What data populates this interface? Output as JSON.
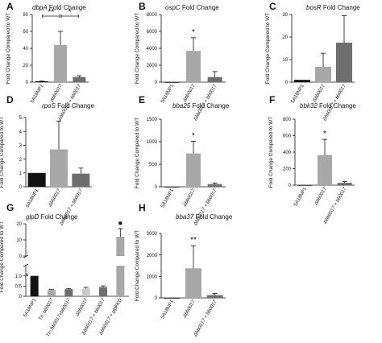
{
  "figure": {
    "y_axis_label": "Fold Change Compared to WT",
    "colors": {
      "black": "#111111",
      "light_gray": "#a8a8a8",
      "dark_gray": "#6e6e6e",
      "lighter_gray": "#c8c8c8",
      "text": "#111111"
    }
  },
  "chart_data": [
    {
      "panel_label": "A",
      "type": "bar",
      "title_gene": "dbpA",
      "title_rest": "Fold Change",
      "ylabel": "Fold Change Compared to WT",
      "ylim": [
        0,
        80
      ],
      "yticks": [
        0,
        20,
        40,
        60,
        80
      ],
      "categories": [
        "5A18NP1",
        "Δbb0017",
        "Δbb0017 + bb0017"
      ],
      "values": [
        1,
        44,
        6
      ],
      "errors": [
        0.3,
        16,
        1.5
      ],
      "bar_colors": [
        "black",
        "light_gray",
        "dark_gray"
      ],
      "brackets": [
        {
          "from": 0,
          "to": 1,
          "label": "**"
        },
        {
          "from": 1,
          "to": 2,
          "label": "*"
        }
      ]
    },
    {
      "panel_label": "B",
      "type": "bar",
      "title_gene": "ospC",
      "title_rest": "Fold Change",
      "ylabel": "Fold Change Compared to WT",
      "ylim": [
        0,
        8000
      ],
      "yticks": [
        0,
        2000,
        4000,
        6000,
        8000
      ],
      "categories": [
        "5A18NP1",
        "Δbb0017",
        "Δbb0017 + bb0017"
      ],
      "values": [
        1,
        3700,
        600
      ],
      "errors": [
        0,
        1550,
        650
      ],
      "bar_colors": [
        "black",
        "light_gray",
        "dark_gray"
      ],
      "stars": [
        null,
        "*",
        null
      ]
    },
    {
      "panel_label": "C",
      "type": "bar",
      "title_gene": "bosR",
      "title_rest": "Fold Change",
      "ylabel": "Fold Change Compared to WT",
      "ylim": [
        0,
        30
      ],
      "yticks": [
        0,
        10,
        20,
        30
      ],
      "categories": [
        "5A18NP1",
        "Δbb0017",
        "Δbb0017 + bb0017"
      ],
      "values": [
        1,
        6.8,
        17.5
      ],
      "errors": [
        0,
        6,
        12
      ],
      "bar_colors": [
        "black",
        "light_gray",
        "dark_gray"
      ]
    },
    {
      "panel_label": "D",
      "type": "bar",
      "title_gene": "rpoS",
      "title_rest": "Fold Change",
      "ylabel": "Fold Change Compared to WT",
      "ylim": [
        0,
        5
      ],
      "yticks": [
        0,
        1,
        2,
        3,
        4,
        5
      ],
      "categories": [
        "5A18NP1",
        "Δbb0017",
        "Δbb0017 + bb0017"
      ],
      "values": [
        1,
        2.7,
        0.95
      ],
      "errors": [
        0,
        2.05,
        0.4
      ],
      "bar_colors": [
        "black",
        "light_gray",
        "dark_gray"
      ]
    },
    {
      "panel_label": "E",
      "type": "bar",
      "title_gene": "bba25",
      "title_rest": "Fold Change",
      "ylabel": "Fold Change Compared to WT",
      "ylim": [
        0,
        1500
      ],
      "yticks": [
        0,
        500,
        1000,
        1500
      ],
      "categories": [
        "5A18NP1",
        "Δbb0017",
        "Δbb0017 + bb0017"
      ],
      "values": [
        1,
        740,
        60
      ],
      "errors": [
        0,
        270,
        25
      ],
      "bar_colors": [
        "black",
        "light_gray",
        "dark_gray"
      ],
      "stars": [
        null,
        "*",
        null
      ]
    },
    {
      "panel_label": "F",
      "type": "bar",
      "title_gene": "bbk32",
      "title_rest": "Fold Change",
      "ylabel": "Fold Change Compared to WT",
      "ylim": [
        0,
        800
      ],
      "yticks": [
        0,
        200,
        400,
        600,
        800
      ],
      "categories": [
        "5A18NP1",
        "Δbb0017",
        "Δbb0017 + bb0017"
      ],
      "values": [
        1,
        365,
        28
      ],
      "errors": [
        0,
        190,
        15
      ],
      "bar_colors": [
        "black",
        "light_gray",
        "dark_gray"
      ],
      "stars": [
        null,
        "*",
        null
      ]
    },
    {
      "panel_label": "G",
      "type": "bar",
      "title_gene": "glpD",
      "title_rest": "Fold Change",
      "ylabel": "Fold Change Compared to WT",
      "lower_ylim": [
        0,
        1.5
      ],
      "lower_yticks": [
        0,
        0.5,
        1.0
      ],
      "upper_ylim": [
        0,
        20
      ],
      "upper_yticks": [
        0,
        10,
        20
      ],
      "categories": [
        "5A18NP1",
        "Tn::bb0017",
        "Tn::bb0017+bb0017",
        "Δbb0017",
        "Δbb0017 + bb0017",
        "Δbb0017 + glpFKD"
      ],
      "values": [
        1.0,
        0.3,
        0.35,
        0.38,
        0.45,
        12
      ],
      "errors": [
        0,
        0.03,
        0.03,
        0.06,
        0.06,
        5
      ],
      "bar_colors": [
        "black",
        "light_gray",
        "dark_gray",
        "lighter_gray",
        "dark_gray",
        "light_gray"
      ],
      "stars": [
        "*",
        null,
        null,
        null,
        null,
        "●"
      ]
    },
    {
      "panel_label": "H",
      "type": "bar",
      "title_gene": "bba37",
      "title_rest": "Fold Change",
      "ylabel": "Fold Change Compared to WT",
      "ylim": [
        0,
        3000
      ],
      "yticks": [
        0,
        1000,
        2000,
        3000
      ],
      "categories": [
        "5A18NP1",
        "Δbb0017",
        "Δbb0017 + bb0017"
      ],
      "values": [
        1,
        1380,
        130
      ],
      "errors": [
        0,
        1050,
        80
      ],
      "bar_colors": [
        "black",
        "light_gray",
        "dark_gray"
      ],
      "stars": [
        null,
        "**",
        null
      ]
    }
  ]
}
